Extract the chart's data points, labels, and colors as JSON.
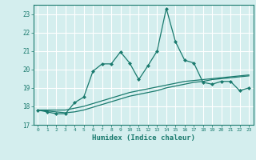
{
  "x": [
    0,
    1,
    2,
    3,
    4,
    5,
    6,
    7,
    8,
    9,
    10,
    11,
    12,
    13,
    14,
    15,
    16,
    17,
    18,
    19,
    20,
    21,
    22,
    23
  ],
  "line1": [
    17.8,
    17.7,
    17.6,
    17.6,
    18.2,
    18.5,
    19.9,
    20.3,
    20.3,
    20.95,
    20.35,
    19.45,
    20.2,
    21.0,
    23.3,
    21.5,
    20.5,
    20.35,
    19.3,
    19.2,
    19.35,
    19.35,
    18.85,
    19.0
  ],
  "line2": [
    17.8,
    17.75,
    17.7,
    17.65,
    17.7,
    17.8,
    17.95,
    18.1,
    18.25,
    18.4,
    18.55,
    18.65,
    18.75,
    18.85,
    19.0,
    19.1,
    19.2,
    19.3,
    19.35,
    19.45,
    19.5,
    19.55,
    19.6,
    19.65
  ],
  "line3": [
    17.8,
    17.8,
    17.8,
    17.8,
    17.9,
    18.0,
    18.15,
    18.3,
    18.45,
    18.6,
    18.75,
    18.85,
    18.95,
    19.05,
    19.15,
    19.25,
    19.35,
    19.4,
    19.45,
    19.5,
    19.55,
    19.6,
    19.65,
    19.7
  ],
  "color": "#1a7a6e",
  "bg_color": "#d4eeee",
  "grid_color": "#ffffff",
  "xlabel": "Humidex (Indice chaleur)",
  "ylim": [
    17,
    23.5
  ],
  "xlim": [
    -0.5,
    23.5
  ],
  "yticks": [
    17,
    18,
    19,
    20,
    21,
    22,
    23
  ],
  "xticks": [
    0,
    1,
    2,
    3,
    4,
    5,
    6,
    7,
    8,
    9,
    10,
    11,
    12,
    13,
    14,
    15,
    16,
    17,
    18,
    19,
    20,
    21,
    22,
    23
  ]
}
